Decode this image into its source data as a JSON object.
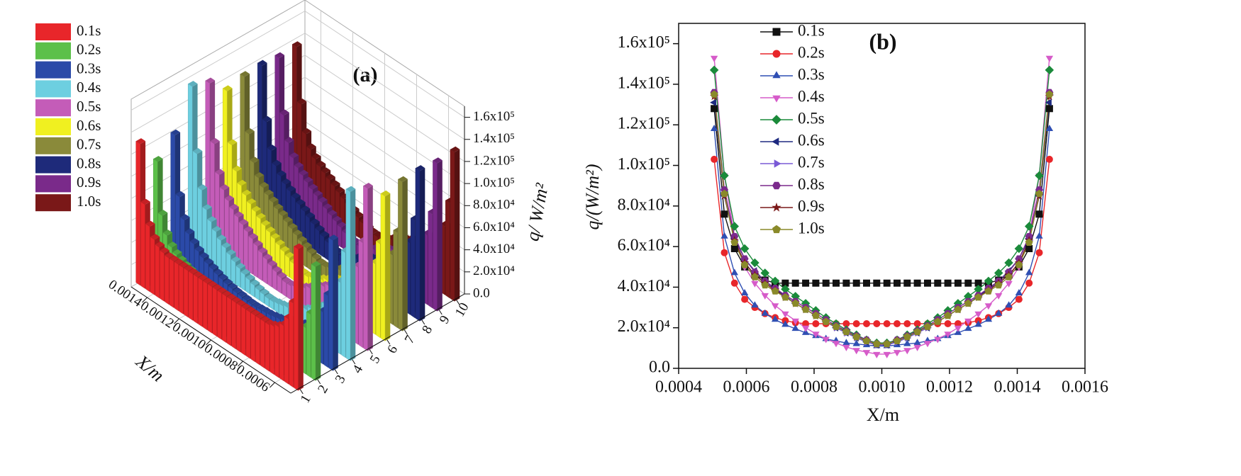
{
  "chart_data": [
    {
      "type": "bar3d",
      "annotation": "(a)",
      "xlabel": "X/m",
      "zlabel": "q/ W/m²",
      "xlim": [
        0.0005,
        0.0015
      ],
      "xticks": [
        0.0006,
        0.0008,
        {
          "value": 0.001,
          "label": "0.0010"
        },
        0.0012,
        0.0014
      ],
      "ylim": [
        0.5,
        10.5
      ],
      "yticks": [
        1,
        2,
        3,
        4,
        5,
        6,
        7,
        8,
        9,
        10
      ],
      "zlim": [
        0,
        170000
      ],
      "zticks": [
        {
          "value": 0,
          "label": "0.0"
        },
        {
          "value": 20000,
          "label": "2.0x10⁴"
        },
        {
          "value": 40000,
          "label": "4.0x10⁴"
        },
        {
          "value": 60000,
          "label": "6.0x10⁴"
        },
        {
          "value": 80000,
          "label": "8.0x10⁴"
        },
        {
          "value": 100000,
          "label": "1.0x10⁵"
        },
        {
          "value": 120000,
          "label": "1.2x10⁵"
        },
        {
          "value": 140000,
          "label": "1.4x10⁵"
        },
        {
          "value": 160000,
          "label": "1.6x10⁵"
        }
      ],
      "x": [
        0.000505,
        0.000535,
        0.000565,
        0.000595,
        0.000625,
        0.000655,
        0.000685,
        0.000715,
        0.000745,
        0.000775,
        0.000805,
        0.000835,
        0.000865,
        0.000895,
        0.000925,
        0.000955,
        0.000985,
        0.001015,
        0.001045,
        0.001075,
        0.001105,
        0.001135,
        0.001165,
        0.001195,
        0.001225,
        0.001255,
        0.001285,
        0.001315,
        0.001345,
        0.001375,
        0.001405,
        0.001435,
        0.001465,
        0.001495
      ],
      "series": [
        {
          "name": "0.1s",
          "color": "#e8262a",
          "values": [
            128000,
            76000,
            59000,
            50000,
            46000,
            43500,
            42000,
            42000,
            42000,
            42000,
            42000,
            42000,
            42000,
            42000,
            42000,
            42000,
            42000,
            42000,
            42000,
            42000,
            42000,
            42000,
            42000,
            42000,
            42000,
            42000,
            42000,
            42000,
            43500,
            46000,
            50000,
            59000,
            76000,
            128000
          ]
        },
        {
          "name": "0.2s",
          "color": "#5cc04a",
          "values": [
            103000,
            57000,
            42000,
            34000,
            30000,
            27000,
            25000,
            23500,
            22500,
            22000,
            22000,
            22000,
            22000,
            22000,
            22000,
            22000,
            22000,
            22000,
            22000,
            22000,
            22000,
            22000,
            22000,
            22000,
            22000,
            22500,
            23500,
            25000,
            27000,
            30000,
            34000,
            42000,
            57000,
            103000
          ]
        },
        {
          "name": "0.3s",
          "color": "#2b4aa8",
          "values": [
            118000,
            65000,
            47000,
            37000,
            31000,
            27000,
            24000,
            21500,
            19500,
            17500,
            16000,
            14500,
            13500,
            12500,
            12000,
            11500,
            11000,
            11000,
            11500,
            12000,
            12500,
            13500,
            14500,
            16000,
            17500,
            19500,
            21500,
            24000,
            27000,
            31000,
            37000,
            47000,
            65000,
            118000
          ]
        },
        {
          "name": "0.4s",
          "color": "#6dcfe0",
          "values": [
            153000,
            95000,
            65000,
            50000,
            42000,
            36000,
            31000,
            27000,
            23500,
            20000,
            17000,
            14500,
            12500,
            10500,
            9000,
            8000,
            7000,
            7000,
            8000,
            9000,
            10500,
            12500,
            14500,
            17000,
            20000,
            23500,
            27000,
            31000,
            36000,
            42000,
            50000,
            65000,
            95000,
            153000
          ]
        },
        {
          "name": "0.5s",
          "color": "#c45cb8",
          "values": [
            147000,
            95000,
            70000,
            59000,
            52000,
            47000,
            43000,
            39000,
            35500,
            32000,
            28500,
            25000,
            22000,
            19000,
            16500,
            14000,
            12500,
            12500,
            14000,
            16500,
            19000,
            22000,
            25000,
            28500,
            32000,
            35500,
            39000,
            43000,
            47000,
            52000,
            59000,
            70000,
            95000,
            147000
          ]
        },
        {
          "name": "0.6s",
          "color": "#f0f020",
          "values": [
            131000,
            85000,
            64000,
            54000,
            48000,
            43000,
            39000,
            35500,
            32000,
            29000,
            26000,
            23000,
            20000,
            17500,
            15000,
            13000,
            11500,
            11500,
            13000,
            15000,
            17500,
            20000,
            23000,
            26000,
            29000,
            32000,
            35500,
            39000,
            43000,
            48000,
            54000,
            64000,
            85000,
            131000
          ]
        },
        {
          "name": "0.7s",
          "color": "#8a8a3a",
          "values": [
            135000,
            86000,
            63000,
            52000,
            46000,
            42000,
            38500,
            35000,
            32000,
            29000,
            26000,
            23000,
            20000,
            17500,
            15000,
            13000,
            11500,
            11500,
            13000,
            15000,
            17500,
            20000,
            23000,
            26000,
            29000,
            32000,
            35000,
            38500,
            42000,
            46000,
            52000,
            63000,
            86000,
            135000
          ]
        },
        {
          "name": "0.8s",
          "color": "#1e2a7a",
          "values": [
            136000,
            88000,
            65000,
            54000,
            47500,
            43000,
            39500,
            36000,
            33000,
            30000,
            27000,
            24000,
            21000,
            18500,
            16000,
            14000,
            12000,
            12000,
            14000,
            16000,
            18500,
            21000,
            24000,
            27000,
            30000,
            33000,
            36000,
            39500,
            43000,
            47500,
            54000,
            65000,
            88000,
            136000
          ]
        },
        {
          "name": "0.9s",
          "color": "#7a2a8a",
          "values": [
            134000,
            85000,
            63000,
            52000,
            46000,
            42000,
            38500,
            35000,
            32000,
            29000,
            26000,
            23000,
            20500,
            18000,
            15500,
            13500,
            12000,
            12000,
            13500,
            15500,
            18000,
            20500,
            23000,
            26000,
            29000,
            32000,
            35000,
            38500,
            42000,
            46000,
            52000,
            63000,
            85000,
            134000
          ]
        },
        {
          "name": "1.0s",
          "color": "#7a1818",
          "values": [
            135000,
            86000,
            62000,
            51000,
            45000,
            41000,
            38000,
            35000,
            32000,
            29000,
            26000,
            23000,
            20500,
            18000,
            15500,
            13500,
            12000,
            12000,
            13500,
            15500,
            18000,
            20500,
            23000,
            26000,
            29000,
            32000,
            35000,
            38000,
            41000,
            45000,
            51000,
            62000,
            86000,
            135000
          ]
        }
      ]
    },
    {
      "type": "line",
      "annotation": "(b)",
      "xlabel": "X/m",
      "ylabel": "q/(W/m²)",
      "xlim": [
        0.0004,
        0.0016
      ],
      "xticks": [
        0.0004,
        0.0006,
        0.0008,
        {
          "value": 0.001,
          "label": "0.0010"
        },
        0.0012,
        0.0014,
        0.0016
      ],
      "ylim": [
        0,
        170000
      ],
      "yticks": [
        {
          "value": 0,
          "label": "0.0"
        },
        {
          "value": 20000,
          "label": "2.0x10⁴"
        },
        {
          "value": 40000,
          "label": "4.0x10⁴"
        },
        {
          "value": 60000,
          "label": "6.0x10⁴"
        },
        {
          "value": 80000,
          "label": "8.0x10⁴"
        },
        {
          "value": 100000,
          "label": "1.0x10⁵"
        },
        {
          "value": 120000,
          "label": "1.2x10⁵"
        },
        {
          "value": 140000,
          "label": "1.4x10⁵"
        },
        {
          "value": 160000,
          "label": "1.6x10⁵"
        }
      ],
      "x": [
        0.000505,
        0.000535,
        0.000565,
        0.000595,
        0.000625,
        0.000655,
        0.000685,
        0.000715,
        0.000745,
        0.000775,
        0.000805,
        0.000835,
        0.000865,
        0.000895,
        0.000925,
        0.000955,
        0.000985,
        0.001015,
        0.001045,
        0.001075,
        0.001105,
        0.001135,
        0.001165,
        0.001195,
        0.001225,
        0.001255,
        0.001285,
        0.001315,
        0.001345,
        0.001375,
        0.001405,
        0.001435,
        0.001465,
        0.001495
      ],
      "series": [
        {
          "name": "0.1s",
          "color": "#111111",
          "marker": "square",
          "values": [
            128000,
            76000,
            59000,
            50000,
            46000,
            43500,
            42000,
            42000,
            42000,
            42000,
            42000,
            42000,
            42000,
            42000,
            42000,
            42000,
            42000,
            42000,
            42000,
            42000,
            42000,
            42000,
            42000,
            42000,
            42000,
            42000,
            42000,
            42000,
            43500,
            46000,
            50000,
            59000,
            76000,
            128000
          ]
        },
        {
          "name": "0.2s",
          "color": "#e8262a",
          "marker": "circle",
          "values": [
            103000,
            57000,
            42000,
            34000,
            30000,
            27000,
            25000,
            23500,
            22500,
            22000,
            22000,
            22000,
            22000,
            22000,
            22000,
            22000,
            22000,
            22000,
            22000,
            22000,
            22000,
            22000,
            22000,
            22000,
            22000,
            22500,
            23500,
            25000,
            27000,
            30000,
            34000,
            42000,
            57000,
            103000
          ]
        },
        {
          "name": "0.3s",
          "color": "#2f4fb3",
          "marker": "triangle-up",
          "values": [
            118000,
            65000,
            47000,
            37000,
            31000,
            27000,
            24000,
            21500,
            19500,
            17500,
            16000,
            14500,
            13500,
            12500,
            12000,
            11500,
            11000,
            11000,
            11500,
            12000,
            12500,
            13500,
            14500,
            16000,
            17500,
            19500,
            21500,
            24000,
            27000,
            31000,
            37000,
            47000,
            65000,
            118000
          ]
        },
        {
          "name": "0.4s",
          "color": "#d65bc9",
          "marker": "triangle-down",
          "values": [
            153000,
            95000,
            65000,
            50000,
            42000,
            36000,
            31000,
            27000,
            23500,
            20000,
            17000,
            14500,
            12500,
            10500,
            9000,
            8000,
            7000,
            7000,
            8000,
            9000,
            10500,
            12500,
            14500,
            17000,
            20000,
            23500,
            27000,
            31000,
            36000,
            42000,
            50000,
            65000,
            95000,
            153000
          ]
        },
        {
          "name": "0.5s",
          "color": "#1a8a3a",
          "marker": "diamond",
          "values": [
            147000,
            95000,
            70000,
            59000,
            52000,
            47000,
            43000,
            39000,
            35500,
            32000,
            28500,
            25000,
            22000,
            19000,
            16500,
            14000,
            12500,
            12500,
            14000,
            16500,
            19000,
            22000,
            25000,
            28500,
            32000,
            35500,
            39000,
            43000,
            47000,
            52000,
            59000,
            70000,
            95000,
            147000
          ]
        },
        {
          "name": "0.6s",
          "color": "#1e2a80",
          "marker": "triangle-left",
          "values": [
            131000,
            85000,
            64000,
            54000,
            48000,
            43000,
            39000,
            35500,
            32000,
            29000,
            26000,
            23000,
            20000,
            17500,
            15000,
            13000,
            11500,
            11500,
            13000,
            15000,
            17500,
            20000,
            23000,
            26000,
            29000,
            32000,
            35500,
            39000,
            43000,
            48000,
            54000,
            64000,
            85000,
            131000
          ]
        },
        {
          "name": "0.7s",
          "color": "#7a5ad6",
          "marker": "triangle-right",
          "values": [
            135000,
            86000,
            63000,
            52000,
            46000,
            42000,
            38500,
            35000,
            32000,
            29000,
            26000,
            23000,
            20000,
            17500,
            15000,
            13000,
            11500,
            11500,
            13000,
            15000,
            17500,
            20000,
            23000,
            26000,
            29000,
            32000,
            35000,
            38500,
            42000,
            46000,
            52000,
            63000,
            86000,
            135000
          ]
        },
        {
          "name": "0.8s",
          "color": "#7b2a8c",
          "marker": "hexagon",
          "values": [
            136000,
            88000,
            65000,
            54000,
            47500,
            43000,
            39500,
            36000,
            33000,
            30000,
            27000,
            24000,
            21000,
            18500,
            16000,
            14000,
            12000,
            12000,
            14000,
            16000,
            18500,
            21000,
            24000,
            27000,
            30000,
            33000,
            36000,
            39500,
            43000,
            47500,
            54000,
            65000,
            88000,
            136000
          ]
        },
        {
          "name": "0.9s",
          "color": "#7a1818",
          "marker": "star",
          "values": [
            134000,
            85000,
            63000,
            52000,
            46000,
            42000,
            38500,
            35000,
            32000,
            29000,
            26000,
            23000,
            20500,
            18000,
            15500,
            13500,
            12000,
            12000,
            13500,
            15500,
            18000,
            20500,
            23000,
            26000,
            29000,
            32000,
            35000,
            38500,
            42000,
            46000,
            52000,
            63000,
            85000,
            134000
          ]
        },
        {
          "name": "1.0s",
          "color": "#8a8a2a",
          "marker": "pentagon",
          "values": [
            135000,
            86000,
            62000,
            51000,
            45000,
            41000,
            38000,
            35000,
            32000,
            29000,
            26000,
            23000,
            20500,
            18000,
            15500,
            13500,
            12000,
            12000,
            13500,
            15500,
            18000,
            20500,
            23000,
            26000,
            29000,
            32000,
            35000,
            38000,
            41000,
            45000,
            51000,
            62000,
            86000,
            135000
          ]
        }
      ]
    }
  ]
}
